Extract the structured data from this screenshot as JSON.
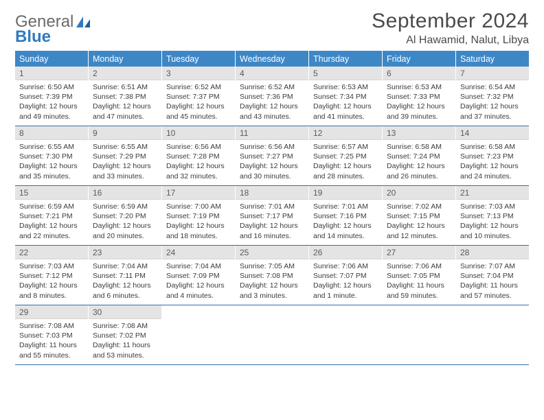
{
  "brand": {
    "line1": "General",
    "line2": "Blue"
  },
  "month_title": "September 2024",
  "location": "Al Hawamid, Nalut, Libya",
  "colors": {
    "header_bg": "#3d87c7",
    "header_text": "#ffffff",
    "daynum_bg": "#e4e4e4",
    "week_divider": "#2f6fa9",
    "title_color": "#4a4a4a",
    "logo_gray": "#6a6a6a",
    "logo_blue": "#2f7bbf"
  },
  "weekdays": [
    "Sunday",
    "Monday",
    "Tuesday",
    "Wednesday",
    "Thursday",
    "Friday",
    "Saturday"
  ],
  "days": [
    {
      "n": "1",
      "sr": "6:50 AM",
      "ss": "7:39 PM",
      "dl": "12 hours and 49 minutes."
    },
    {
      "n": "2",
      "sr": "6:51 AM",
      "ss": "7:38 PM",
      "dl": "12 hours and 47 minutes."
    },
    {
      "n": "3",
      "sr": "6:52 AM",
      "ss": "7:37 PM",
      "dl": "12 hours and 45 minutes."
    },
    {
      "n": "4",
      "sr": "6:52 AM",
      "ss": "7:36 PM",
      "dl": "12 hours and 43 minutes."
    },
    {
      "n": "5",
      "sr": "6:53 AM",
      "ss": "7:34 PM",
      "dl": "12 hours and 41 minutes."
    },
    {
      "n": "6",
      "sr": "6:53 AM",
      "ss": "7:33 PM",
      "dl": "12 hours and 39 minutes."
    },
    {
      "n": "7",
      "sr": "6:54 AM",
      "ss": "7:32 PM",
      "dl": "12 hours and 37 minutes."
    },
    {
      "n": "8",
      "sr": "6:55 AM",
      "ss": "7:30 PM",
      "dl": "12 hours and 35 minutes."
    },
    {
      "n": "9",
      "sr": "6:55 AM",
      "ss": "7:29 PM",
      "dl": "12 hours and 33 minutes."
    },
    {
      "n": "10",
      "sr": "6:56 AM",
      "ss": "7:28 PM",
      "dl": "12 hours and 32 minutes."
    },
    {
      "n": "11",
      "sr": "6:56 AM",
      "ss": "7:27 PM",
      "dl": "12 hours and 30 minutes."
    },
    {
      "n": "12",
      "sr": "6:57 AM",
      "ss": "7:25 PM",
      "dl": "12 hours and 28 minutes."
    },
    {
      "n": "13",
      "sr": "6:58 AM",
      "ss": "7:24 PM",
      "dl": "12 hours and 26 minutes."
    },
    {
      "n": "14",
      "sr": "6:58 AM",
      "ss": "7:23 PM",
      "dl": "12 hours and 24 minutes."
    },
    {
      "n": "15",
      "sr": "6:59 AM",
      "ss": "7:21 PM",
      "dl": "12 hours and 22 minutes."
    },
    {
      "n": "16",
      "sr": "6:59 AM",
      "ss": "7:20 PM",
      "dl": "12 hours and 20 minutes."
    },
    {
      "n": "17",
      "sr": "7:00 AM",
      "ss": "7:19 PM",
      "dl": "12 hours and 18 minutes."
    },
    {
      "n": "18",
      "sr": "7:01 AM",
      "ss": "7:17 PM",
      "dl": "12 hours and 16 minutes."
    },
    {
      "n": "19",
      "sr": "7:01 AM",
      "ss": "7:16 PM",
      "dl": "12 hours and 14 minutes."
    },
    {
      "n": "20",
      "sr": "7:02 AM",
      "ss": "7:15 PM",
      "dl": "12 hours and 12 minutes."
    },
    {
      "n": "21",
      "sr": "7:03 AM",
      "ss": "7:13 PM",
      "dl": "12 hours and 10 minutes."
    },
    {
      "n": "22",
      "sr": "7:03 AM",
      "ss": "7:12 PM",
      "dl": "12 hours and 8 minutes."
    },
    {
      "n": "23",
      "sr": "7:04 AM",
      "ss": "7:11 PM",
      "dl": "12 hours and 6 minutes."
    },
    {
      "n": "24",
      "sr": "7:04 AM",
      "ss": "7:09 PM",
      "dl": "12 hours and 4 minutes."
    },
    {
      "n": "25",
      "sr": "7:05 AM",
      "ss": "7:08 PM",
      "dl": "12 hours and 3 minutes."
    },
    {
      "n": "26",
      "sr": "7:06 AM",
      "ss": "7:07 PM",
      "dl": "12 hours and 1 minute."
    },
    {
      "n": "27",
      "sr": "7:06 AM",
      "ss": "7:05 PM",
      "dl": "11 hours and 59 minutes."
    },
    {
      "n": "28",
      "sr": "7:07 AM",
      "ss": "7:04 PM",
      "dl": "11 hours and 57 minutes."
    },
    {
      "n": "29",
      "sr": "7:08 AM",
      "ss": "7:03 PM",
      "dl": "11 hours and 55 minutes."
    },
    {
      "n": "30",
      "sr": "7:08 AM",
      "ss": "7:02 PM",
      "dl": "11 hours and 53 minutes."
    }
  ],
  "labels": {
    "sunrise": "Sunrise:",
    "sunset": "Sunset:",
    "daylight": "Daylight:"
  },
  "layout": {
    "cols": 7,
    "total_cells": 35,
    "start_offset": 0
  }
}
